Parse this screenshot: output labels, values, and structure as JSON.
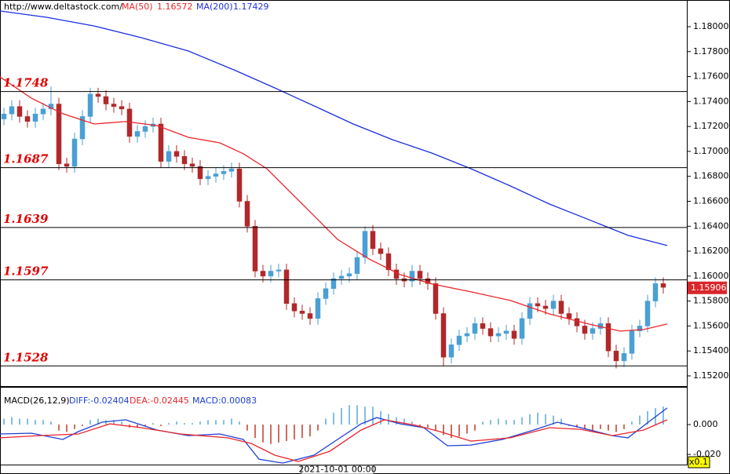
{
  "header": {
    "site": "http://www.deltastock.com/"
  },
  "chart_data": [
    {
      "type": "candlestick",
      "xlim": [
        -0.5,
        87
      ],
      "ylim": [
        1.15118,
        1.18214
      ],
      "yticks": [
        {
          "value": 1.152,
          "label": "1.15200"
        },
        {
          "value": 1.154,
          "label": "1.15400"
        },
        {
          "value": 1.156,
          "label": "1.15600"
        },
        {
          "value": 1.158,
          "label": "1.15800"
        },
        {
          "value": 1.16,
          "label": "1.16000"
        },
        {
          "value": 1.162,
          "label": "1.16200"
        },
        {
          "value": 1.164,
          "label": "1.16400"
        },
        {
          "value": 1.166,
          "label": "1.16600"
        },
        {
          "value": 1.168,
          "label": "1.16800"
        },
        {
          "value": 1.17,
          "label": "1.17000"
        },
        {
          "value": 1.172,
          "label": "1.17200"
        },
        {
          "value": 1.174,
          "label": "1.17400"
        },
        {
          "value": 1.176,
          "label": "1.17600"
        },
        {
          "value": 1.178,
          "label": "1.17800"
        },
        {
          "value": 1.18,
          "label": "1.18000"
        }
      ],
      "up_color": "#4a9fd4",
      "down_color": "#b0282a",
      "levels": [
        1.1748,
        1.1687,
        1.1639,
        1.1597,
        1.1528
      ],
      "level_color": "#e00000",
      "last_price": 1.15906,
      "open": [
        1.1726,
        1.173,
        1.1736,
        1.1728,
        1.1724,
        1.173,
        1.1734,
        1.1738,
        1.169,
        1.1688,
        1.171,
        1.1728,
        1.1746,
        1.1744,
        1.1738,
        1.1736,
        1.1734,
        1.1712,
        1.1716,
        1.172,
        1.1722,
        1.1692,
        1.17,
        1.1696,
        1.169,
        1.1688,
        1.1678,
        1.168,
        1.1682,
        1.1684,
        1.1686,
        1.166,
        1.164,
        1.1604,
        1.16,
        1.1604,
        1.1605,
        1.1578,
        1.1572,
        1.157,
        1.1566,
        1.1582,
        1.159,
        1.1598,
        1.16,
        1.1602,
        1.1615,
        1.1636,
        1.1622,
        1.1618,
        1.1605,
        1.1598,
        1.1596,
        1.1604,
        1.1598,
        1.1594,
        1.157,
        1.1535,
        1.1545,
        1.1552,
        1.1554,
        1.1562,
        1.1558,
        1.1552,
        1.1554,
        1.1556,
        1.155,
        1.1566,
        1.1578,
        1.1576,
        1.1574,
        1.158,
        1.157,
        1.1566,
        1.156,
        1.1554,
        1.1558,
        1.1562,
        1.154,
        1.1532,
        1.1538,
        1.1556,
        1.156,
        1.158,
        1.1594
      ],
      "high": [
        1.1735,
        1.1741,
        1.1741,
        1.1733,
        1.1735,
        1.1739,
        1.1752,
        1.1743,
        1.1695,
        1.1715,
        1.1733,
        1.1751,
        1.1751,
        1.1749,
        1.1743,
        1.1741,
        1.1739,
        1.1721,
        1.1725,
        1.1727,
        1.1727,
        1.1705,
        1.1705,
        1.1701,
        1.1695,
        1.1693,
        1.1685,
        1.1687,
        1.1689,
        1.1691,
        1.1691,
        1.1665,
        1.1645,
        1.1609,
        1.1609,
        1.161,
        1.161,
        1.1583,
        1.1577,
        1.1575,
        1.1587,
        1.1595,
        1.1603,
        1.1605,
        1.1607,
        1.162,
        1.164,
        1.1641,
        1.1627,
        1.1623,
        1.161,
        1.1603,
        1.1609,
        1.1609,
        1.1603,
        1.1599,
        1.1575,
        1.155,
        1.1557,
        1.1559,
        1.1567,
        1.1567,
        1.1563,
        1.1559,
        1.1561,
        1.1561,
        1.1571,
        1.1583,
        1.1583,
        1.1581,
        1.1585,
        1.1585,
        1.1575,
        1.1571,
        1.1565,
        1.1563,
        1.1567,
        1.1567,
        1.1545,
        1.1543,
        1.1561,
        1.1565,
        1.1585,
        1.1599,
        1.1599
      ],
      "low": [
        1.1721,
        1.1725,
        1.1723,
        1.1719,
        1.1719,
        1.1725,
        1.1729,
        1.1685,
        1.1683,
        1.1683,
        1.1705,
        1.1723,
        1.1739,
        1.1733,
        1.1731,
        1.1729,
        1.1707,
        1.1707,
        1.1711,
        1.1715,
        1.1687,
        1.1687,
        1.1691,
        1.1685,
        1.1683,
        1.1673,
        1.1673,
        1.1675,
        1.1677,
        1.1679,
        1.1655,
        1.1635,
        1.1599,
        1.1595,
        1.1595,
        1.1599,
        1.1573,
        1.1567,
        1.1565,
        1.1561,
        1.1561,
        1.1577,
        1.1585,
        1.1593,
        1.1595,
        1.1597,
        1.161,
        1.1617,
        1.1613,
        1.16,
        1.1593,
        1.1591,
        1.1591,
        1.1593,
        1.1589,
        1.1565,
        1.1528,
        1.153,
        1.154,
        1.1547,
        1.1549,
        1.1553,
        1.1547,
        1.1547,
        1.1549,
        1.1545,
        1.1545,
        1.1561,
        1.1571,
        1.1569,
        1.1569,
        1.1565,
        1.1561,
        1.1555,
        1.1549,
        1.1549,
        1.1553,
        1.1535,
        1.1526,
        1.1527,
        1.1533,
        1.1551,
        1.1555,
        1.1575,
        1.1586
      ],
      "close": [
        1.173,
        1.1736,
        1.1728,
        1.1724,
        1.173,
        1.1734,
        1.1738,
        1.169,
        1.1688,
        1.171,
        1.1728,
        1.1746,
        1.1744,
        1.1738,
        1.1736,
        1.1734,
        1.1712,
        1.1716,
        1.172,
        1.1722,
        1.1692,
        1.17,
        1.1696,
        1.169,
        1.1688,
        1.1678,
        1.168,
        1.1682,
        1.1684,
        1.1686,
        1.166,
        1.164,
        1.1604,
        1.16,
        1.1604,
        1.1605,
        1.1578,
        1.1572,
        1.157,
        1.1566,
        1.1582,
        1.159,
        1.1598,
        1.16,
        1.1602,
        1.1615,
        1.1636,
        1.1622,
        1.1618,
        1.1605,
        1.1598,
        1.1596,
        1.1604,
        1.1598,
        1.1594,
        1.157,
        1.1535,
        1.1545,
        1.1552,
        1.1554,
        1.1562,
        1.1558,
        1.1552,
        1.1554,
        1.1556,
        1.155,
        1.1566,
        1.1578,
        1.1576,
        1.1574,
        1.158,
        1.157,
        1.1566,
        1.156,
        1.1554,
        1.1558,
        1.1562,
        1.154,
        1.1532,
        1.1538,
        1.1556,
        1.156,
        1.158,
        1.1594,
        1.1591
      ],
      "series": [
        {
          "name": "MA(50)",
          "current": 1.16572,
          "color": "#e8262b",
          "x": [
            -0.5,
            3.5,
            7.5,
            11.5,
            15.5,
            19.5,
            23.5,
            27.5,
            30.5,
            33.5,
            36.5,
            39.5,
            42.5,
            46.5,
            50.5,
            54.5,
            59.5,
            64.5,
            69.5,
            74.5,
            78.5,
            81.5,
            84.5
          ],
          "values": [
            1.17597,
            1.17427,
            1.17302,
            1.1722,
            1.17239,
            1.17207,
            1.17113,
            1.17069,
            1.16981,
            1.16861,
            1.16672,
            1.16484,
            1.16295,
            1.16138,
            1.16012,
            1.15937,
            1.15874,
            1.15805,
            1.15697,
            1.15616,
            1.15559,
            1.15572,
            1.15616
          ]
        },
        {
          "name": "MA(200)",
          "current": 1.17429,
          "color": "#1c2fe0",
          "x": [
            -0.5,
            5.5,
            11.5,
            17.5,
            23.5,
            29.5,
            34.5,
            39.5,
            44.5,
            49.5,
            54.5,
            59.5,
            64.5,
            69.5,
            74.5,
            79.5,
            84.5
          ],
          "values": [
            1.18126,
            1.18075,
            1.18006,
            1.17912,
            1.17805,
            1.17648,
            1.17509,
            1.17365,
            1.1722,
            1.17094,
            1.16987,
            1.16861,
            1.16723,
            1.16578,
            1.16453,
            1.16327,
            1.16245
          ]
        }
      ]
    },
    {
      "type": "macd",
      "title": "MACD(26,12,9)",
      "xlim": [
        -0.5,
        87
      ],
      "ylim": [
        -0.0268,
        0.0247
      ],
      "yticks": [
        {
          "value": 0,
          "label": "0.000"
        },
        {
          "value": -0.02,
          "label": "-0.020"
        }
      ],
      "xticks": [
        {
          "value": 42.5,
          "label": "2021-10-01 00:00"
        }
      ],
      "scale_label": "x0.1",
      "histogram": {
        "name": "MACD:0.00083",
        "up_color": "#5aa9d6",
        "down_color": "#c0392b",
        "values": [
          0.004,
          0.005,
          0.004,
          0.004,
          0.003,
          0.003,
          0.002,
          -0.004,
          -0.005,
          -0.003,
          -0.001,
          0.003,
          0.004,
          0.003,
          0.003,
          0.002,
          -0.002,
          -0.002,
          -0.001,
          0.001,
          -0.001,
          0.001,
          0.002,
          0.001,
          0.001,
          0.002,
          0.003,
          0.003,
          0.003,
          0.004,
          0.002,
          -0.004,
          -0.009,
          -0.012,
          -0.013,
          -0.012,
          -0.011,
          -0.01,
          -0.009,
          -0.008,
          -0.004,
          0.004,
          0.008,
          0.011,
          0.013,
          0.013,
          0.012,
          0.012,
          0.009,
          0.007,
          0.005,
          0.004,
          0.002,
          -0.001,
          -0.002,
          -0.004,
          -0.007,
          -0.009,
          -0.008,
          -0.006,
          -0.004,
          0.002,
          0.003,
          0.004,
          0.003,
          0.003,
          0.005,
          0.007,
          0.008,
          0.007,
          0.006,
          0.004,
          -0.001,
          -0.002,
          -0.003,
          -0.004,
          -0.003,
          -0.004,
          -0.005,
          -0.003,
          0.002,
          0.006,
          0.009,
          0.011,
          0.012
        ]
      },
      "series": [
        {
          "name": "DIFF:-0.02404",
          "color": "#1f3fd6",
          "x": [
            -0.5,
            3.5,
            7.5,
            9.5,
            12.5,
            15.5,
            19.5,
            23.5,
            27.5,
            30.5,
            32.5,
            35.5,
            39.5,
            42.5,
            45.5,
            47.5,
            50.5,
            53.5,
            56.5,
            59.5,
            63.5,
            67.5,
            70.5,
            73.5,
            77.5,
            79.5,
            82.5,
            84.5
          ],
          "values": [
            -0.0063,
            -0.0058,
            -0.01,
            -0.0047,
            0.0016,
            0.0032,
            -0.0037,
            -0.0074,
            -0.0063,
            -0.01,
            -0.0232,
            -0.0258,
            -0.0205,
            -0.01,
            0.0005,
            0.0047,
            0.0005,
            -0.0021,
            -0.0142,
            -0.0137,
            -0.01,
            -0.0037,
            0.0016,
            -0.0021,
            -0.0074,
            -0.0089,
            0.0032,
            0.0111
          ]
        },
        {
          "name": "DEA:-0.02445",
          "color": "#e8262b",
          "x": [
            -0.5,
            4.5,
            9.5,
            13.5,
            17.5,
            22.5,
            28.5,
            31.5,
            34.5,
            37.5,
            41.5,
            45.5,
            48.5,
            52.5,
            55.5,
            59.5,
            64.5,
            69.5,
            73.5,
            77.5,
            81.5,
            84.5
          ],
          "values": [
            -0.0089,
            -0.0074,
            -0.0063,
            0.0005,
            -0.0021,
            -0.0063,
            -0.0089,
            -0.0126,
            -0.0205,
            -0.0247,
            -0.0179,
            -0.0037,
            0.0032,
            -0.0005,
            -0.0047,
            -0.0111,
            -0.0089,
            -0.0021,
            -0.0032,
            -0.0074,
            -0.0037,
            0.0032
          ]
        }
      ]
    }
  ]
}
